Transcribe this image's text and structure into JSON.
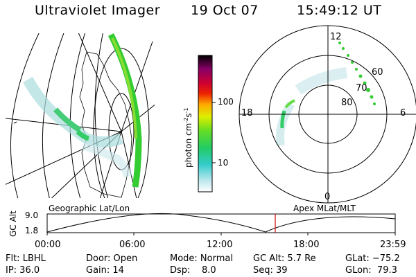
{
  "header": {
    "title": "Ultraviolet Imager",
    "date": "19 Oct 07",
    "time": "15:49:12 UT"
  },
  "colorbar": {
    "unit_label": "photon cm",
    "unit_exp1": "-2",
    "unit_mid": "s",
    "unit_exp2": "-1",
    "tick_100": "100",
    "tick_10": "10"
  },
  "polar": {
    "label_12": "12",
    "label_18": "18",
    "label_6": "6",
    "label_0": "0",
    "label_60": "60",
    "label_70": "70",
    "label_80": "80"
  },
  "altitude_plot": {
    "ylabel": "GC Alt",
    "ytick_top": "9.0",
    "ytick_bottom": "1.8",
    "left_title": "Geographic Lat/Lon",
    "right_title": "Apex MLat/MLT",
    "xticks": [
      "00:00",
      "06:00",
      "12:00",
      "18:00",
      "23:59"
    ]
  },
  "status": {
    "flt": "Flt: LBHL",
    "ip": "IP: 36.0",
    "door": "Door: Open",
    "gain": "Gain: 14",
    "mode": "Mode: Normal",
    "dsp": "Dsp:    8.0",
    "gc_alt": "GC Alt: 5.7 Re",
    "seq": "Seq: 39",
    "glat": "GLat: −75.2",
    "glon": "GLon:  79.3"
  },
  "colors": {
    "marker": "#cc0000",
    "aurora_green": "#33cc33",
    "aurora_cyan": "#99dddd"
  }
}
